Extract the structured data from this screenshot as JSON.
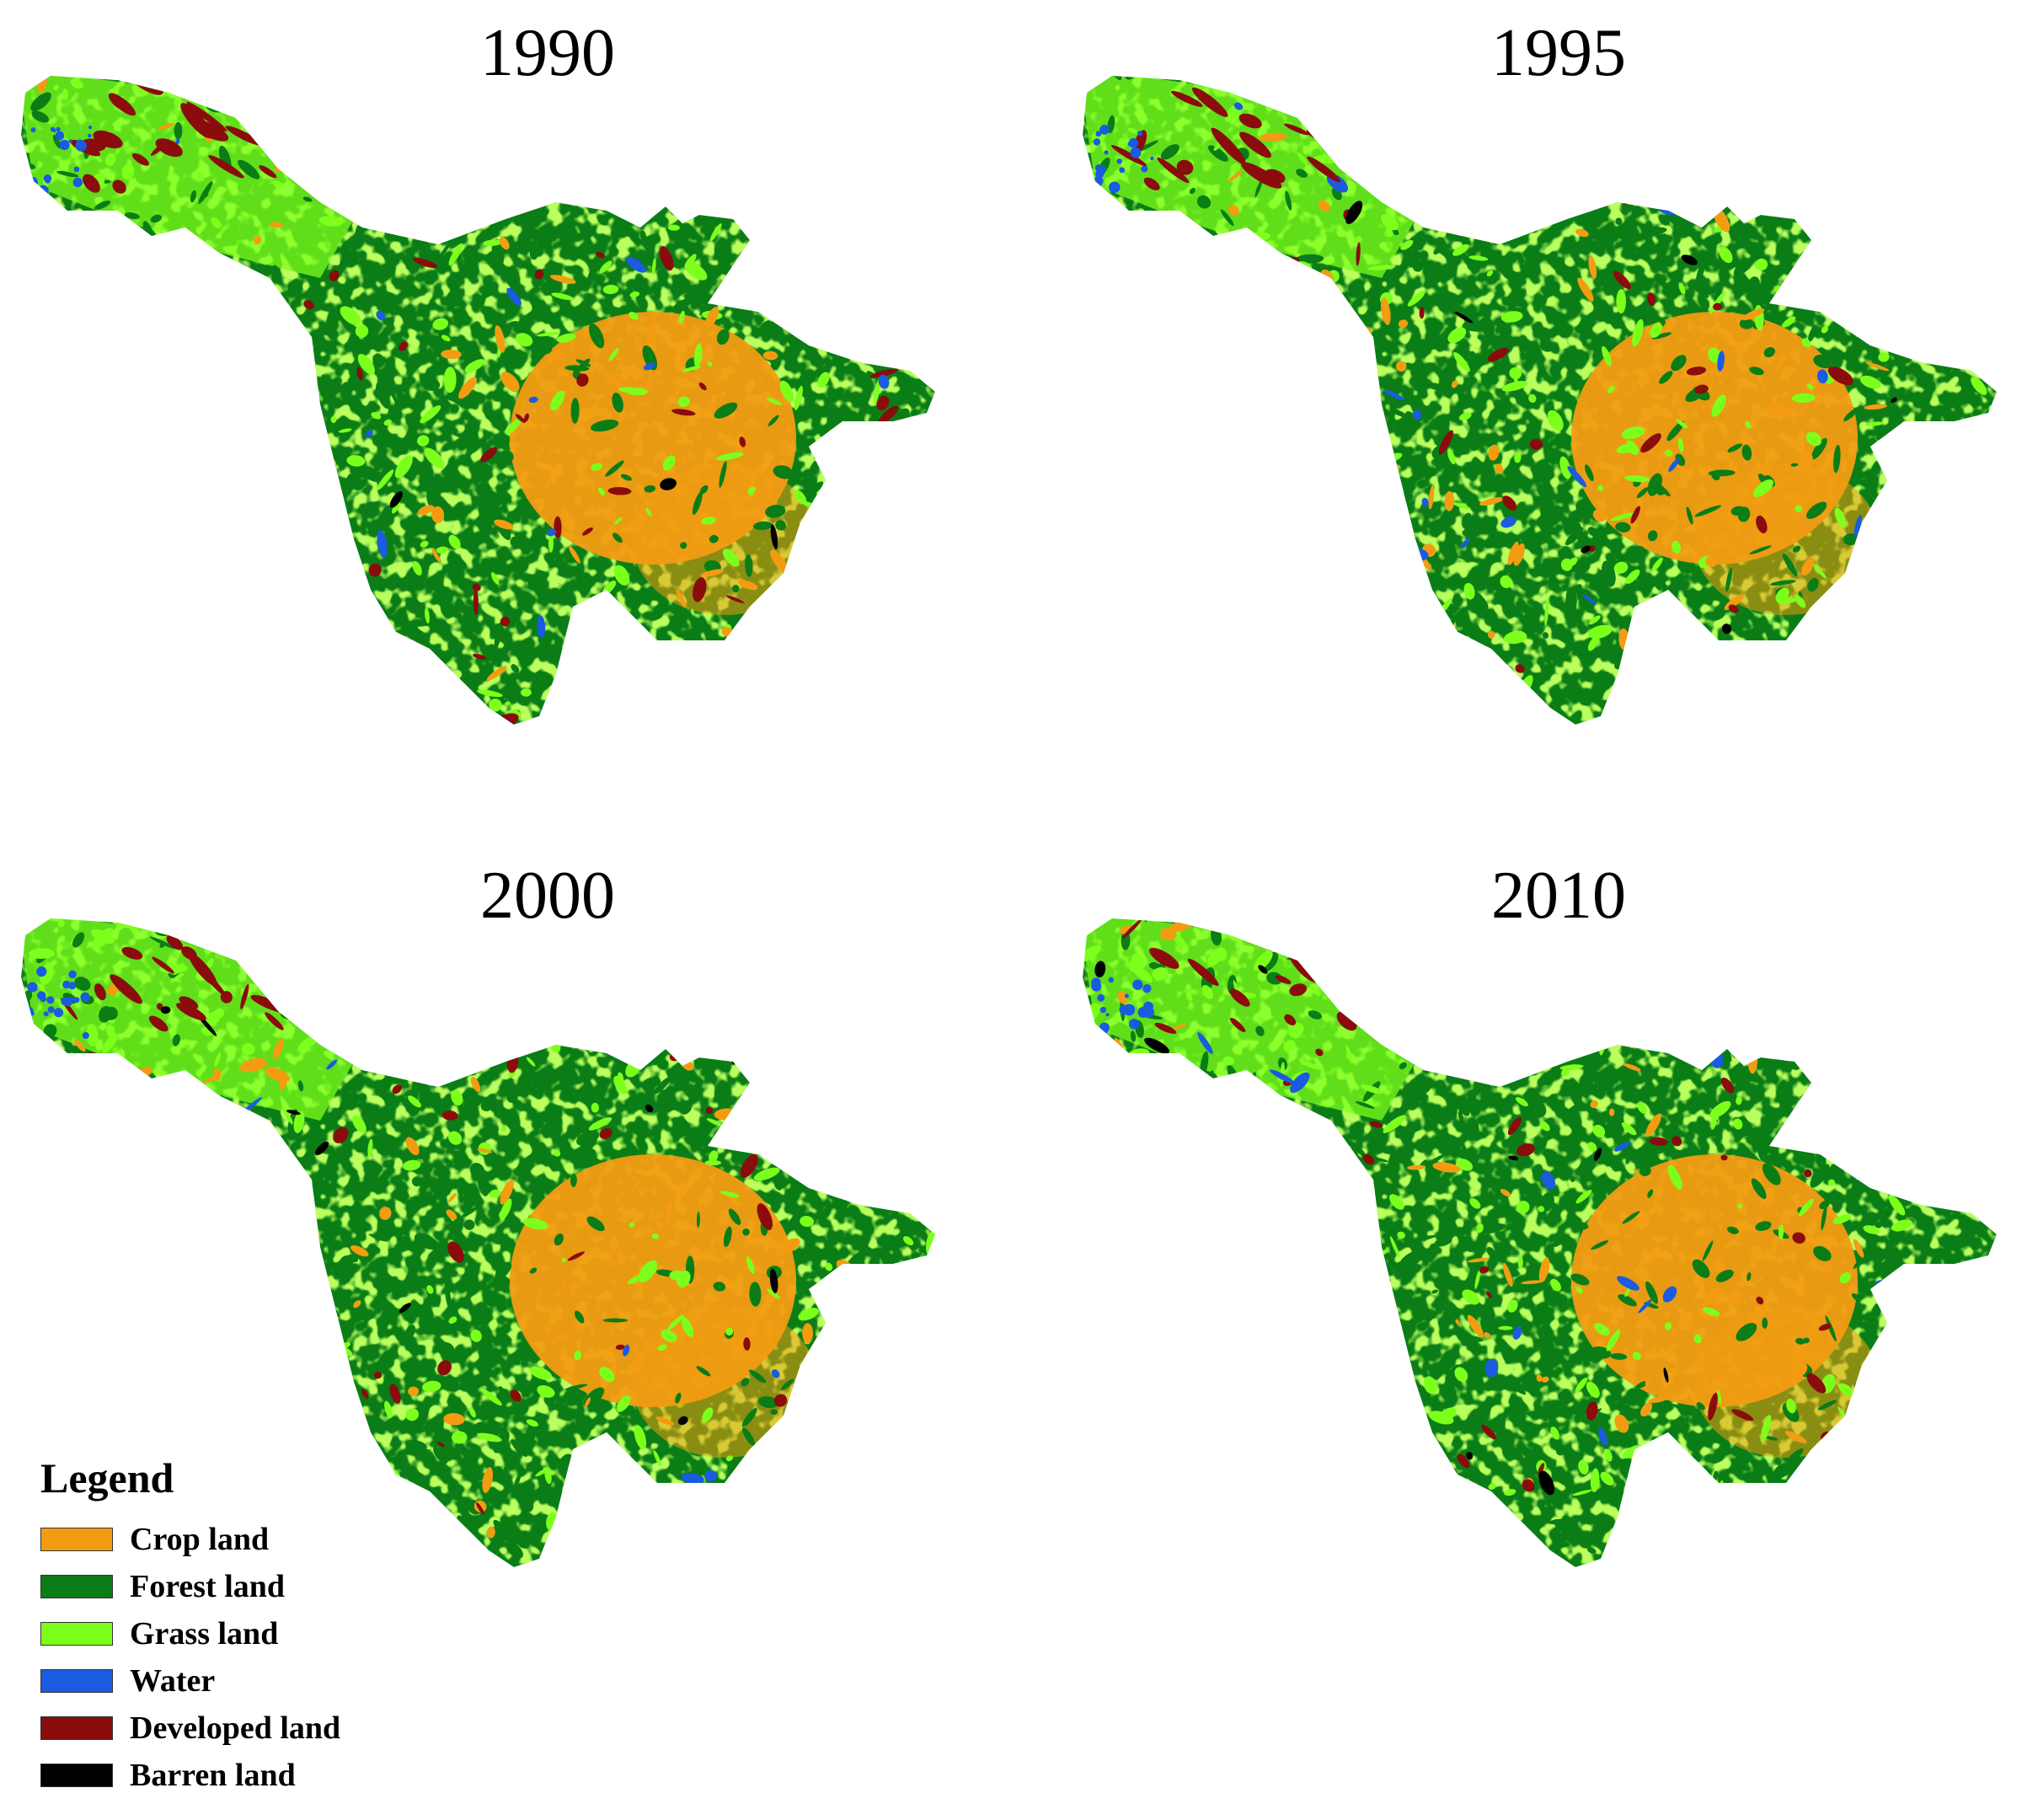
{
  "panels": [
    {
      "year": "1990"
    },
    {
      "year": "1995"
    },
    {
      "year": "2000"
    },
    {
      "year": "2010"
    }
  ],
  "legend": {
    "title": "Legend",
    "items": [
      {
        "label": "Crop land",
        "color": "#f39c12"
      },
      {
        "label": "Forest land",
        "color": "#0a7d16"
      },
      {
        "label": "Grass land",
        "color": "#7dff1c"
      },
      {
        "label": "Water",
        "color": "#1a5be0"
      },
      {
        "label": "Developed land",
        "color": "#8a0c0c"
      },
      {
        "label": "Barren land",
        "color": "#000000"
      }
    ]
  },
  "colors": {
    "crop": "#f39c12",
    "forest": "#0a7d16",
    "grass": "#7dff1c",
    "water": "#1a5be0",
    "developed": "#8a0c0c",
    "barren": "#000000"
  }
}
